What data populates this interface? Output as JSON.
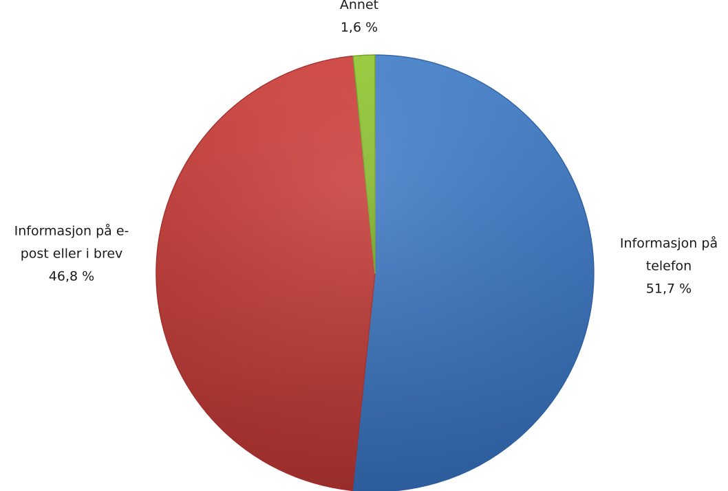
{
  "chart_data": {
    "type": "pie",
    "title": "",
    "slices": [
      {
        "label_lines": [
          "Informasjon på",
          "telefon"
        ],
        "value_label": "51,7 %",
        "value": 51.7,
        "color": "#4a86d2",
        "color_dark": "#2f63a8"
      },
      {
        "label_lines": [
          "Informasjon på e-",
          "post eller i brev"
        ],
        "value_label": "46,8 %",
        "value": 46.8,
        "color": "#d64541",
        "color_dark": "#a52f2c"
      },
      {
        "label_lines": [
          "Annet"
        ],
        "value_label": "1,6 %",
        "value": 1.6,
        "color": "#9bd138",
        "color_dark": "#73a322"
      }
    ],
    "start_angle_deg": 0,
    "direction": "clockwise",
    "legend": "none",
    "style": "3d-gradient"
  }
}
